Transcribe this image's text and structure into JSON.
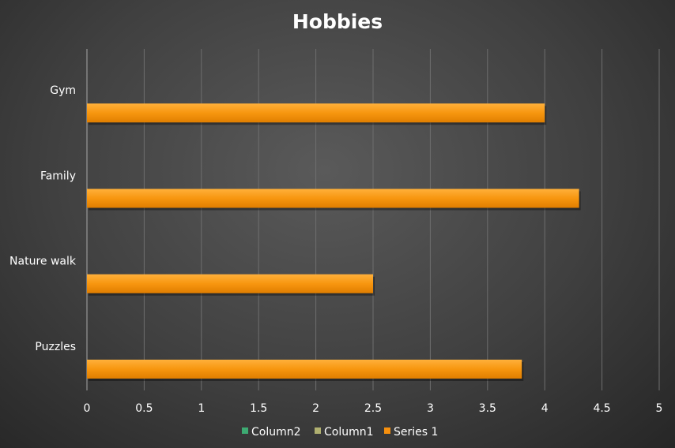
{
  "chart_data": {
    "type": "bar",
    "orientation": "horizontal",
    "title": "Hobbies",
    "xlabel": "",
    "ylabel": "",
    "categories": [
      "Gym",
      "Family",
      "Nature walk",
      "Puzzles"
    ],
    "series": [
      {
        "name": "Column2",
        "color": "#3daa72",
        "values": [
          null,
          null,
          null,
          null
        ]
      },
      {
        "name": "Column1",
        "color": "#b0b070",
        "values": [
          null,
          null,
          null,
          null
        ]
      },
      {
        "name": "Series 1",
        "color": "#f6900e",
        "values": [
          4,
          4.3,
          2.5,
          3.8
        ]
      }
    ],
    "xlim": [
      0,
      5
    ],
    "xticks": [
      "0",
      "0.5",
      "1",
      "1.5",
      "2",
      "2.5",
      "3",
      "3.5",
      "4",
      "4.5",
      "5"
    ],
    "grid": "vertical",
    "legend": "bottom"
  }
}
